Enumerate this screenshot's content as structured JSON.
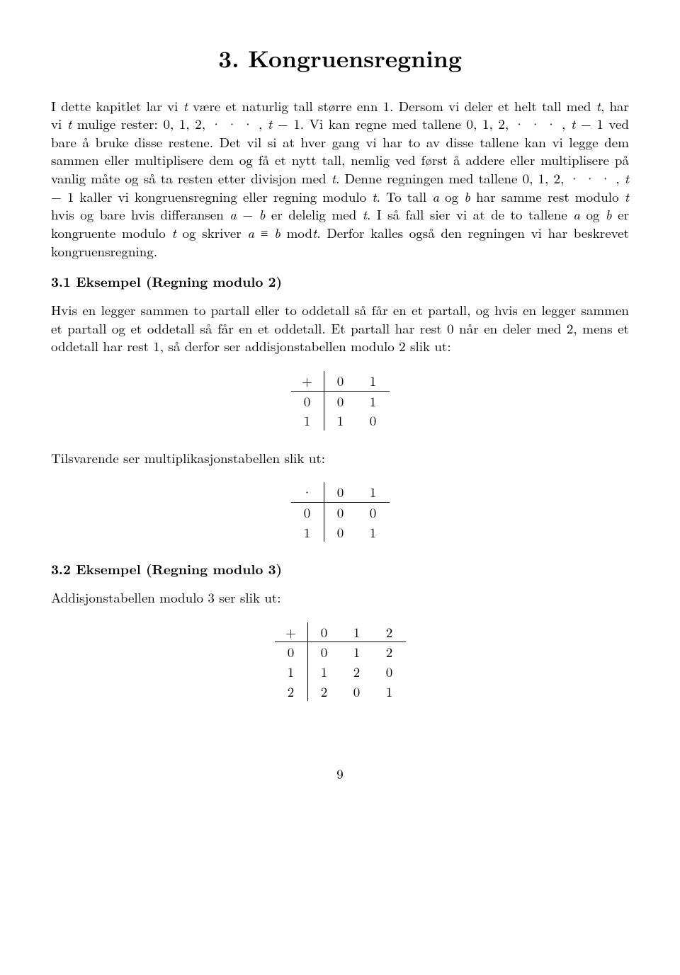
{
  "title": "3. Kongruensregning",
  "para1_a": "I dette kapitlet lar vi ",
  "para1_t1": "t",
  "para1_b": " være et naturlig tall større enn 1. Dersom vi deler et helt tall med ",
  "para1_t2": "t",
  "para1_c": ", har vi ",
  "para1_t3": "t",
  "para1_d": " mulige rester: 0, 1, 2, · · · , ",
  "para1_t4": "t",
  "para1_e": " − 1. Vi kan regne med tallene 0, 1, 2, · · · , ",
  "para1_t5": "t",
  "para1_f": " − 1 ved bare å bruke disse restene. Det vil si at hver gang vi har to av disse tallene kan vi legge dem sammen eller multiplisere dem og få et nytt tall, nemlig ved først å addere eller multiplisere på vanlig måte og så ta resten etter divisjon med ",
  "para1_t6": "t",
  "para1_g": ". Denne regningen med tallene 0, 1, 2, · · · , ",
  "para1_t7": "t",
  "para1_h": " − 1 kaller vi kongruensregning eller regning modulo ",
  "para1_t8": "t",
  "para1_i": ". To tall ",
  "para1_a1": "a",
  "para1_j": " og ",
  "para1_b1": "b",
  "para1_k": " har samme rest modulo ",
  "para1_t9": "t",
  "para1_l": " hvis og bare hvis differansen ",
  "para1_a2": "a",
  "para1_m": " − ",
  "para1_b2": "b",
  "para1_n": " er delelig med ",
  "para1_t10": "t",
  "para1_o": ". I så fall sier vi at de to tallene ",
  "para1_a3": "a",
  "para1_p": " og ",
  "para1_b3": "b",
  "para1_q": " er kongruente modulo ",
  "para1_t11": "t",
  "para1_r": " og skriver ",
  "para1_a4": "a",
  "para1_s": " ≡ ",
  "para1_b4": "b",
  "para1_u": "   mod",
  "para1_t12": "t",
  "para1_v": ". Derfor kalles også den regningen vi har beskrevet kongruensregning.",
  "heading31": "3.1 Eksempel (Regning modulo 2)",
  "para31": "Hvis en legger sammen to partall eller to oddetall så får en et partall, og hvis en legger sammen et partall og et oddetall så får en et oddetall. Et partall har rest 0 når en deler med 2, mens et oddetall har rest 1, så derfor ser addisjonstabellen modulo 2 slik ut:",
  "add2": {
    "op": "+",
    "head": [
      "0",
      "1"
    ],
    "rows": [
      [
        "0",
        "0",
        "1"
      ],
      [
        "1",
        "1",
        "0"
      ]
    ]
  },
  "para31b": "Tilsvarende ser multiplikasjonstabellen slik ut:",
  "mul2": {
    "op": "·",
    "head": [
      "0",
      "1"
    ],
    "rows": [
      [
        "0",
        "0",
        "0"
      ],
      [
        "1",
        "0",
        "1"
      ]
    ]
  },
  "heading32": "3.2 Eksempel (Regning modulo 3)",
  "para32": "Addisjonstabellen modulo 3 ser slik ut:",
  "add3": {
    "op": "+",
    "head": [
      "0",
      "1",
      "2"
    ],
    "rows": [
      [
        "0",
        "0",
        "1",
        "2"
      ],
      [
        "1",
        "1",
        "2",
        "0"
      ],
      [
        "2",
        "2",
        "0",
        "1"
      ]
    ]
  },
  "pageNumber": "9"
}
